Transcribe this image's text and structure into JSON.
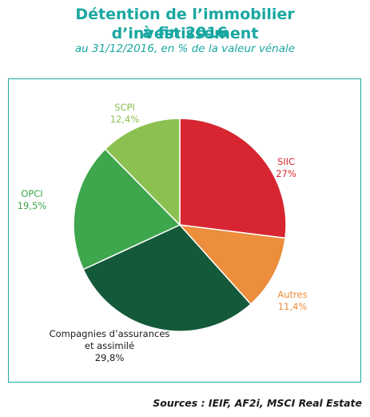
{
  "header": {
    "title_line1": "Détention de l’immobilier d’investissement",
    "title_line2": "à fin 2016",
    "subtitle": "au 31/12/2016, en % de la valeur vénale"
  },
  "source": "Sources : IEIF, AF2i, MSCI Real Estate",
  "chart_data": {
    "type": "pie",
    "title": "Détention de l’immobilier d’investissement à fin 2016",
    "subtitle": "au 31/12/2016, en % de la valeur vénale",
    "unit": "%",
    "slices": [
      {
        "label": "SIIC",
        "value": 27.0,
        "value_label": "27%",
        "color": "#d72631"
      },
      {
        "label": "Autres",
        "value": 11.4,
        "value_label": "11,4%",
        "color": "#ec8e3c"
      },
      {
        "label": "Compagnies d’assurances et assimilé",
        "value": 29.8,
        "value_label": "29,8%",
        "color": "#14593a"
      },
      {
        "label": "OPCI",
        "value": 19.5,
        "value_label": "19,5%",
        "color": "#3ea64c"
      },
      {
        "label": "SCPI",
        "value": 12.4,
        "value_label": "12,4%",
        "color": "#8cc152"
      }
    ],
    "label_color": "#1a1a1a"
  }
}
